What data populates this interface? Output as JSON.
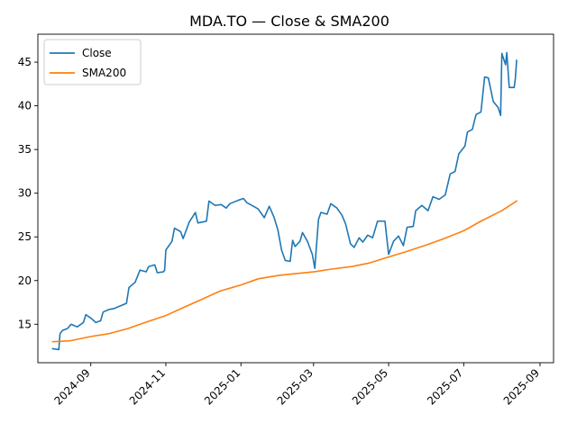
{
  "chart_data": {
    "type": "line",
    "title": "MDA.TO — Close & SMA200",
    "xlabel": "",
    "ylabel": "",
    "x_range": [
      "2024-07-20",
      "2025-09-12"
    ],
    "ylim": [
      10.6,
      48.2
    ],
    "y_ticks": [
      15,
      20,
      25,
      30,
      35,
      40,
      45
    ],
    "x_ticks": [
      "2024-09-01",
      "2024-11-01",
      "2025-01-01",
      "2025-03-01",
      "2025-05-01",
      "2025-07-01",
      "2025-09-01"
    ],
    "x_tick_labels": [
      "2024-09",
      "2024-11",
      "2025-01",
      "2025-03",
      "2025-05",
      "2025-07",
      "2025-09"
    ],
    "grid": false,
    "legend_position": "upper-left",
    "series": [
      {
        "name": "Close",
        "color": "#1f77b4",
        "points": [
          [
            "2024-08-01",
            12.2
          ],
          [
            "2024-08-06",
            12.1
          ],
          [
            "2024-08-07",
            13.9
          ],
          [
            "2024-08-09",
            14.3
          ],
          [
            "2024-08-13",
            14.5
          ],
          [
            "2024-08-16",
            15.0
          ],
          [
            "2024-08-21",
            14.7
          ],
          [
            "2024-08-26",
            15.2
          ],
          [
            "2024-08-28",
            16.1
          ],
          [
            "2024-09-02",
            15.6
          ],
          [
            "2024-09-05",
            15.2
          ],
          [
            "2024-09-09",
            15.4
          ],
          [
            "2024-09-11",
            16.4
          ],
          [
            "2024-09-16",
            16.7
          ],
          [
            "2024-09-20",
            16.8
          ],
          [
            "2024-09-25",
            17.1
          ],
          [
            "2024-09-30",
            17.4
          ],
          [
            "2024-10-02",
            19.2
          ],
          [
            "2024-10-07",
            19.8
          ],
          [
            "2024-10-11",
            21.2
          ],
          [
            "2024-10-16",
            21.0
          ],
          [
            "2024-10-18",
            21.6
          ],
          [
            "2024-10-23",
            21.8
          ],
          [
            "2024-10-25",
            20.9
          ],
          [
            "2024-10-30",
            21.0
          ],
          [
            "2024-10-31",
            21.2
          ],
          [
            "2024-11-01",
            23.5
          ],
          [
            "2024-11-06",
            24.5
          ],
          [
            "2024-11-08",
            26.0
          ],
          [
            "2024-11-13",
            25.6
          ],
          [
            "2024-11-15",
            24.8
          ],
          [
            "2024-11-20",
            26.7
          ],
          [
            "2024-11-25",
            27.8
          ],
          [
            "2024-11-27",
            26.6
          ],
          [
            "2024-12-01",
            26.7
          ],
          [
            "2024-12-04",
            26.8
          ],
          [
            "2024-12-06",
            29.1
          ],
          [
            "2024-12-11",
            28.6
          ],
          [
            "2024-12-16",
            28.7
          ],
          [
            "2024-12-20",
            28.3
          ],
          [
            "2024-12-23",
            28.8
          ],
          [
            "2024-12-30",
            29.2
          ],
          [
            "2025-01-03",
            29.4
          ],
          [
            "2025-01-06",
            28.9
          ],
          [
            "2025-01-10",
            28.6
          ],
          [
            "2025-01-15",
            28.2
          ],
          [
            "2025-01-20",
            27.2
          ],
          [
            "2025-01-24",
            28.5
          ],
          [
            "2025-01-28",
            27.2
          ],
          [
            "2025-01-31",
            25.8
          ],
          [
            "2025-02-03",
            23.5
          ],
          [
            "2025-02-06",
            22.3
          ],
          [
            "2025-02-10",
            22.2
          ],
          [
            "2025-02-12",
            24.6
          ],
          [
            "2025-02-14",
            23.9
          ],
          [
            "2025-02-18",
            24.5
          ],
          [
            "2025-02-20",
            25.5
          ],
          [
            "2025-02-24",
            24.5
          ],
          [
            "2025-02-28",
            23.0
          ],
          [
            "2025-03-02",
            21.4
          ],
          [
            "2025-03-05",
            27.0
          ],
          [
            "2025-03-07",
            27.8
          ],
          [
            "2025-03-12",
            27.6
          ],
          [
            "2025-03-15",
            28.8
          ],
          [
            "2025-03-20",
            28.3
          ],
          [
            "2025-03-24",
            27.5
          ],
          [
            "2025-03-27",
            26.5
          ],
          [
            "2025-03-31",
            24.2
          ],
          [
            "2025-04-03",
            23.8
          ],
          [
            "2025-04-07",
            24.9
          ],
          [
            "2025-04-10",
            24.4
          ],
          [
            "2025-04-14",
            25.2
          ],
          [
            "2025-04-18",
            24.9
          ],
          [
            "2025-04-22",
            26.8
          ],
          [
            "2025-04-28",
            26.8
          ],
          [
            "2025-05-01",
            23.0
          ],
          [
            "2025-05-05",
            24.5
          ],
          [
            "2025-05-09",
            25.1
          ],
          [
            "2025-05-13",
            24.0
          ],
          [
            "2025-05-16",
            26.1
          ],
          [
            "2025-05-21",
            26.2
          ],
          [
            "2025-05-23",
            28.0
          ],
          [
            "2025-05-28",
            28.6
          ],
          [
            "2025-06-02",
            28.0
          ],
          [
            "2025-06-06",
            29.6
          ],
          [
            "2025-06-11",
            29.3
          ],
          [
            "2025-06-16",
            29.8
          ],
          [
            "2025-06-20",
            32.2
          ],
          [
            "2025-06-24",
            32.5
          ],
          [
            "2025-06-27",
            34.5
          ],
          [
            "2025-07-02",
            35.4
          ],
          [
            "2025-07-04",
            37.0
          ],
          [
            "2025-07-08",
            37.3
          ],
          [
            "2025-07-11",
            39.0
          ],
          [
            "2025-07-15",
            39.3
          ],
          [
            "2025-07-18",
            43.3
          ],
          [
            "2025-07-21",
            43.2
          ],
          [
            "2025-07-25",
            40.5
          ],
          [
            "2025-07-29",
            39.8
          ],
          [
            "2025-07-31",
            38.9
          ],
          [
            "2025-08-01",
            46.0
          ],
          [
            "2025-08-04",
            44.7
          ],
          [
            "2025-08-05",
            46.1
          ],
          [
            "2025-08-07",
            42.1
          ],
          [
            "2025-08-11",
            42.1
          ],
          [
            "2025-08-12",
            43.2
          ],
          [
            "2025-08-13",
            45.2
          ]
        ]
      },
      {
        "name": "SMA200",
        "color": "#ff7f0e",
        "points": [
          [
            "2024-08-01",
            13.0
          ],
          [
            "2024-08-15",
            13.1
          ],
          [
            "2024-09-01",
            13.6
          ],
          [
            "2024-09-15",
            13.9
          ],
          [
            "2024-10-01",
            14.5
          ],
          [
            "2024-10-15",
            15.2
          ],
          [
            "2024-11-01",
            16.0
          ],
          [
            "2024-11-15",
            16.9
          ],
          [
            "2024-12-01",
            17.9
          ],
          [
            "2024-12-15",
            18.8
          ],
          [
            "2025-01-01",
            19.5
          ],
          [
            "2025-01-15",
            20.2
          ],
          [
            "2025-02-01",
            20.6
          ],
          [
            "2025-02-15",
            20.8
          ],
          [
            "2025-03-01",
            21.0
          ],
          [
            "2025-03-15",
            21.3
          ],
          [
            "2025-04-01",
            21.6
          ],
          [
            "2025-04-15",
            22.0
          ],
          [
            "2025-05-01",
            22.7
          ],
          [
            "2025-05-15",
            23.3
          ],
          [
            "2025-06-01",
            24.1
          ],
          [
            "2025-06-15",
            24.8
          ],
          [
            "2025-07-01",
            25.7
          ],
          [
            "2025-07-15",
            26.8
          ],
          [
            "2025-08-01",
            28.0
          ],
          [
            "2025-08-13",
            29.1
          ]
        ]
      }
    ]
  }
}
